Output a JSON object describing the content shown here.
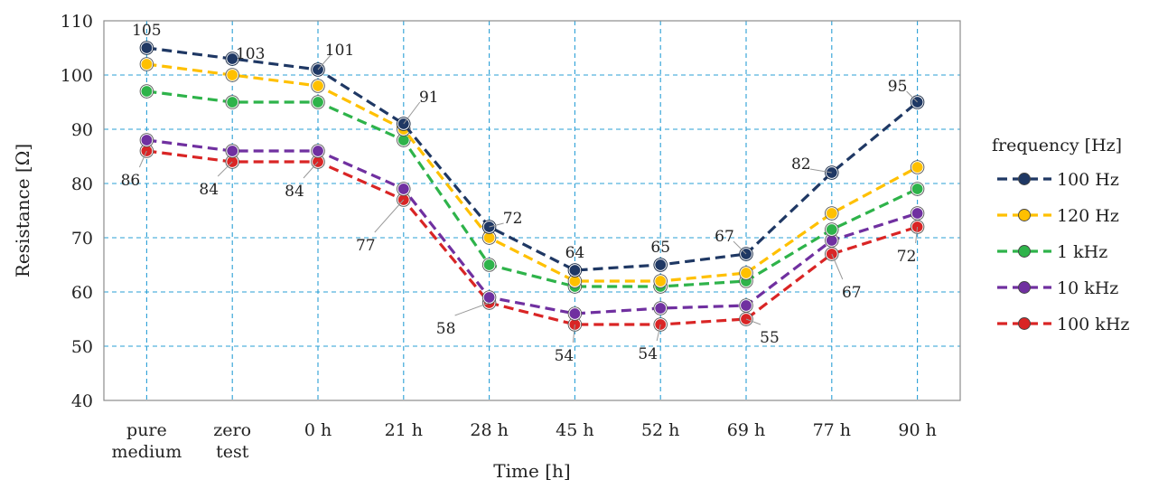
{
  "chart_data": {
    "type": "line",
    "title": "",
    "xlabel": "Time [h]",
    "ylabel": "Resistance [Ω]",
    "ylim": [
      40,
      110
    ],
    "yticks": [
      40,
      50,
      60,
      70,
      80,
      90,
      100,
      110
    ],
    "categories": [
      "pure medium",
      "zero test",
      "0 h",
      "21 h",
      "28 h",
      "45 h",
      "52 h",
      "69 h",
      "77 h",
      "90 h"
    ],
    "category_lines": [
      [
        "pure",
        "medium"
      ],
      [
        "zero",
        "test"
      ],
      [
        "0 h"
      ],
      [
        "21 h"
      ],
      [
        "28 h"
      ],
      [
        "45 h"
      ],
      [
        "52 h"
      ],
      [
        "69 h"
      ],
      [
        "77 h"
      ],
      [
        "90 h"
      ]
    ],
    "legend_title": "frequency [Hz]",
    "legend_position": "right",
    "grid": true,
    "series": [
      {
        "name": "100 Hz",
        "color": "#1f3864",
        "values": [
          105,
          103,
          101,
          91,
          72,
          64,
          65,
          67,
          82,
          95
        ]
      },
      {
        "name": "120 Hz",
        "color": "#ffc000",
        "values": [
          102,
          100,
          98,
          90,
          70,
          62,
          62,
          63.5,
          74.5,
          83
        ]
      },
      {
        "name": "1 kHz",
        "color": "#2eb34a",
        "values": [
          97,
          95,
          95,
          88,
          65,
          61,
          61,
          62,
          71.5,
          79
        ]
      },
      {
        "name": "10 kHz",
        "color": "#7030a0",
        "values": [
          88,
          86,
          86,
          79,
          59,
          56,
          57,
          57.5,
          69.5,
          74.5
        ]
      },
      {
        "name": "100 kHz",
        "color": "#d92525",
        "values": [
          86,
          84,
          84,
          77,
          58,
          54,
          54,
          55,
          67,
          72
        ]
      }
    ],
    "annotations": [
      {
        "text": "105",
        "series": "100 Hz",
        "index": 0
      },
      {
        "text": "103",
        "series": "100 Hz",
        "index": 1
      },
      {
        "text": "101",
        "series": "100 Hz",
        "index": 2
      },
      {
        "text": "91",
        "series": "100 Hz",
        "index": 3
      },
      {
        "text": "72",
        "series": "100 Hz",
        "index": 4
      },
      {
        "text": "64",
        "series": "100 Hz",
        "index": 5
      },
      {
        "text": "65",
        "series": "100 Hz",
        "index": 6
      },
      {
        "text": "67",
        "series": "100 Hz",
        "index": 7
      },
      {
        "text": "82",
        "series": "100 Hz",
        "index": 8
      },
      {
        "text": "95",
        "series": "100 Hz",
        "index": 9
      },
      {
        "text": "86",
        "series": "100 kHz",
        "index": 0
      },
      {
        "text": "84",
        "series": "100 kHz",
        "index": 1
      },
      {
        "text": "84",
        "series": "100 kHz",
        "index": 2
      },
      {
        "text": "77",
        "series": "100 kHz",
        "index": 3
      },
      {
        "text": "58",
        "series": "100 kHz",
        "index": 4
      },
      {
        "text": "54",
        "series": "100 kHz",
        "index": 5
      },
      {
        "text": "54",
        "series": "100 kHz",
        "index": 6
      },
      {
        "text": "55",
        "series": "100 kHz",
        "index": 7
      },
      {
        "text": "67",
        "series": "100 kHz",
        "index": 8
      },
      {
        "text": "72",
        "series": "100 kHz",
        "index": 9
      }
    ]
  }
}
